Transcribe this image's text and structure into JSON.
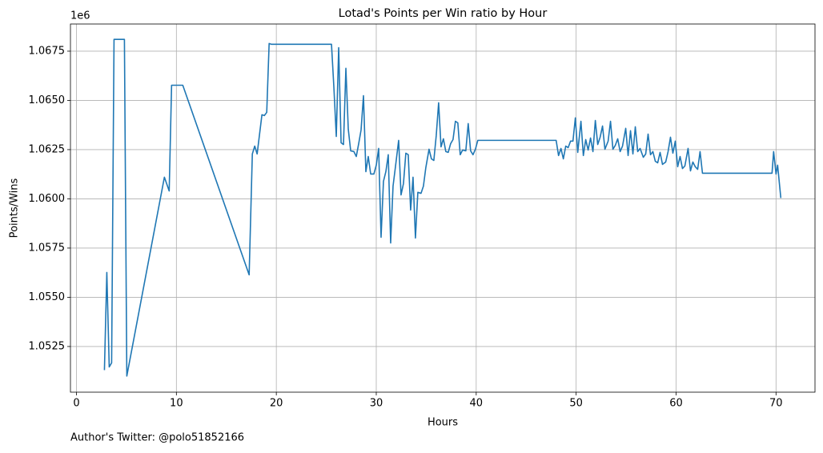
{
  "chart_data": {
    "type": "line",
    "title": "Lotad's Points per Win ratio by Hour",
    "xlabel": "Hours",
    "ylabel": "Points/Wins",
    "y_offset_label": "1e6",
    "footer": "Author's Twitter: @polo51852166",
    "grid": true,
    "xlim": [
      -0.6,
      73.9
    ],
    "ylim": [
      1050180,
      1068880
    ],
    "xticks": [
      0,
      10,
      20,
      30,
      40,
      50,
      60,
      70
    ],
    "yticks": [
      {
        "value": 1052500,
        "label": "1.0525"
      },
      {
        "value": 1055000,
        "label": "1.0550"
      },
      {
        "value": 1057500,
        "label": "1.0575"
      },
      {
        "value": 1060000,
        "label": "1.0600"
      },
      {
        "value": 1062500,
        "label": "1.0625"
      },
      {
        "value": 1065000,
        "label": "1.0650"
      },
      {
        "value": 1067500,
        "label": "1.0675"
      }
    ],
    "x": [
      2.8,
      3.04,
      3.28,
      3.52,
      3.76,
      4.8,
      5.04,
      8.8,
      9.28,
      9.52,
      10.64,
      17.28,
      17.6,
      17.84,
      18.08,
      18.56,
      18.8,
      19.04,
      19.28,
      19.52,
      25.52,
      25.76,
      26.0,
      26.24,
      26.48,
      26.72,
      26.96,
      27.2,
      27.44,
      27.76,
      28.0,
      28.24,
      28.48,
      28.72,
      28.96,
      29.2,
      29.44,
      29.76,
      30.0,
      30.24,
      30.48,
      30.72,
      30.96,
      31.2,
      31.44,
      31.68,
      31.92,
      32.24,
      32.48,
      32.72,
      32.96,
      33.2,
      33.44,
      33.68,
      33.92,
      34.16,
      34.48,
      34.72,
      34.96,
      35.28,
      35.52,
      35.76,
      36.0,
      36.24,
      36.48,
      36.72,
      36.96,
      37.2,
      37.44,
      37.68,
      37.92,
      38.16,
      38.4,
      38.64,
      38.96,
      39.2,
      39.44,
      39.68,
      39.92,
      40.16,
      48.0,
      48.24,
      48.48,
      48.72,
      48.96,
      49.2,
      49.44,
      49.68,
      49.92,
      50.16,
      50.48,
      50.72,
      50.96,
      51.2,
      51.44,
      51.68,
      51.92,
      52.16,
      52.4,
      52.64,
      52.88,
      53.2,
      53.44,
      53.68,
      53.92,
      54.16,
      54.4,
      54.64,
      54.96,
      55.2,
      55.44,
      55.68,
      55.92,
      56.16,
      56.4,
      56.72,
      56.96,
      57.2,
      57.44,
      57.68,
      57.92,
      58.16,
      58.4,
      58.64,
      58.96,
      59.2,
      59.44,
      59.68,
      59.92,
      60.16,
      60.4,
      60.64,
      60.88,
      61.2,
      61.44,
      61.68,
      61.92,
      62.16,
      62.4,
      62.64,
      69.6,
      69.76,
      70.0,
      70.16,
      70.48
    ],
    "series": [
      {
        "name": "Points/Wins",
        "color": "#1f77b4",
        "values": [
          1051300,
          1056260,
          1051460,
          1051670,
          1068100,
          1068100,
          1051000,
          1061100,
          1060400,
          1065770,
          1065770,
          1056140,
          1062280,
          1062680,
          1062280,
          1064270,
          1064230,
          1064390,
          1067890,
          1067850,
          1067850,
          1065650,
          1063170,
          1067680,
          1062850,
          1062760,
          1066630,
          1063540,
          1062440,
          1062400,
          1062150,
          1062800,
          1063500,
          1065240,
          1061380,
          1062150,
          1061260,
          1061260,
          1061710,
          1062560,
          1058050,
          1060890,
          1061380,
          1062240,
          1057760,
          1060650,
          1061630,
          1062970,
          1060200,
          1060770,
          1062320,
          1062240,
          1059430,
          1061100,
          1058010,
          1060330,
          1060280,
          1060650,
          1061590,
          1062520,
          1062030,
          1061950,
          1063210,
          1064880,
          1062640,
          1063050,
          1062400,
          1062360,
          1062800,
          1063010,
          1063940,
          1063860,
          1062240,
          1062480,
          1062440,
          1063820,
          1062440,
          1062240,
          1062520,
          1062970,
          1062970,
          1062200,
          1062560,
          1062030,
          1062680,
          1062600,
          1062930,
          1062930,
          1064110,
          1062360,
          1063940,
          1062200,
          1063010,
          1062480,
          1063090,
          1062400,
          1063980,
          1062760,
          1063130,
          1063700,
          1062520,
          1062930,
          1063940,
          1062520,
          1062720,
          1063050,
          1062400,
          1062680,
          1063580,
          1062200,
          1063460,
          1062280,
          1063660,
          1062400,
          1062560,
          1062110,
          1062280,
          1063290,
          1062240,
          1062400,
          1061910,
          1061830,
          1062360,
          1061750,
          1061870,
          1062400,
          1063130,
          1062320,
          1062930,
          1061630,
          1062150,
          1061540,
          1061670,
          1062560,
          1061420,
          1061870,
          1061630,
          1061500,
          1062400,
          1061300,
          1061300,
          1062400,
          1061260,
          1061710,
          1060040
        ]
      }
    ]
  }
}
